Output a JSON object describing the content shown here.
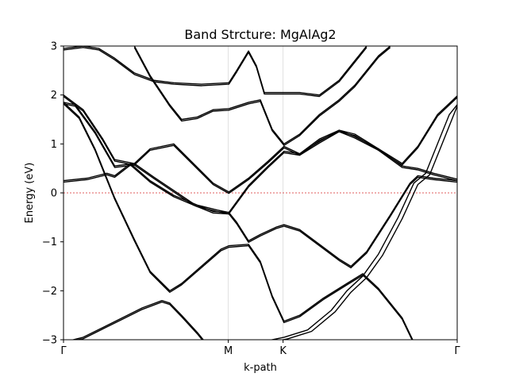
{
  "chart_data": {
    "type": "line",
    "title": "Band Strcture: MgAlAg2",
    "xlabel": "k-path",
    "ylabel": "Energy (eV)",
    "ylim": [
      -3,
      3
    ],
    "yticks": [
      -3,
      -2,
      -1,
      0,
      1,
      2,
      3
    ],
    "ytick_labels": [
      "−3",
      "−2",
      "−1",
      "0",
      "1",
      "2",
      "3"
    ],
    "xlim": [
      0,
      1
    ],
    "xticks": [
      {
        "pos": 0.0,
        "label": "Γ"
      },
      {
        "pos": 0.4186,
        "label": "M"
      },
      {
        "pos": 0.5577,
        "label": "K"
      },
      {
        "pos": 1.0,
        "label": "Γ"
      }
    ],
    "fermi_level": 0,
    "grid": "vertical at high-symmetry points",
    "colors": {
      "bands": "#000000",
      "fermi": "#d62728",
      "grid": "#d9d9d9"
    },
    "series": [
      {
        "points": [
          [
            0,
            -3.05
          ],
          [
            0.05,
            -2.95
          ],
          [
            0.1,
            -2.75
          ],
          [
            0.15,
            -2.55
          ],
          [
            0.2,
            -2.35
          ],
          [
            0.25,
            -2.2
          ],
          [
            0.27,
            -2.25
          ],
          [
            0.3,
            -2.5
          ],
          [
            0.34,
            -2.85
          ],
          [
            0.36,
            -3.05
          ]
        ]
      },
      {
        "points": [
          [
            0,
            -3.05
          ],
          [
            0.05,
            -2.98
          ],
          [
            0.1,
            -2.78
          ],
          [
            0.15,
            -2.58
          ],
          [
            0.2,
            -2.38
          ],
          [
            0.25,
            -2.23
          ],
          [
            0.27,
            -2.28
          ],
          [
            0.3,
            -2.53
          ],
          [
            0.34,
            -2.88
          ],
          [
            0.36,
            -3.08
          ]
        ]
      },
      {
        "points": [
          [
            0,
            1.85
          ],
          [
            0.04,
            1.55
          ],
          [
            0.08,
            0.9
          ],
          [
            0.13,
            -0.1
          ],
          [
            0.18,
            -0.95
          ],
          [
            0.22,
            -1.6
          ],
          [
            0.27,
            -2.0
          ],
          [
            0.3,
            -1.85
          ],
          [
            0.35,
            -1.5
          ],
          [
            0.4,
            -1.15
          ],
          [
            0.42,
            -1.08
          ],
          [
            0.47,
            -1.05
          ],
          [
            0.5,
            -1.4
          ],
          [
            0.53,
            -2.1
          ],
          [
            0.56,
            -2.62
          ],
          [
            0.6,
            -2.5
          ],
          [
            0.66,
            -2.15
          ],
          [
            0.72,
            -1.85
          ],
          [
            0.76,
            -1.65
          ],
          [
            0.8,
            -1.95
          ],
          [
            0.86,
            -2.55
          ],
          [
            0.89,
            -3.05
          ]
        ]
      },
      {
        "points": [
          [
            0,
            1.82
          ],
          [
            0.04,
            1.52
          ],
          [
            0.08,
            0.87
          ],
          [
            0.13,
            -0.13
          ],
          [
            0.18,
            -0.98
          ],
          [
            0.22,
            -1.63
          ],
          [
            0.27,
            -2.03
          ],
          [
            0.3,
            -1.88
          ],
          [
            0.35,
            -1.53
          ],
          [
            0.4,
            -1.18
          ],
          [
            0.42,
            -1.11
          ],
          [
            0.47,
            -1.08
          ],
          [
            0.5,
            -1.43
          ],
          [
            0.53,
            -2.13
          ],
          [
            0.56,
            -2.65
          ],
          [
            0.6,
            -2.53
          ],
          [
            0.66,
            -2.18
          ],
          [
            0.72,
            -1.88
          ],
          [
            0.76,
            -1.68
          ],
          [
            0.8,
            -1.98
          ],
          [
            0.86,
            -2.58
          ],
          [
            0.89,
            -3.08
          ]
        ]
      },
      {
        "points": [
          [
            0,
            0.25
          ],
          [
            0.06,
            0.3
          ],
          [
            0.11,
            0.4
          ],
          [
            0.13,
            0.35
          ],
          [
            0.17,
            0.6
          ],
          [
            0.22,
            0.25
          ],
          [
            0.28,
            -0.05
          ],
          [
            0.34,
            -0.25
          ],
          [
            0.39,
            -0.35
          ],
          [
            0.42,
            -0.4
          ],
          [
            0.44,
            -0.6
          ],
          [
            0.47,
            -0.98
          ],
          [
            0.5,
            -0.85
          ],
          [
            0.54,
            -0.7
          ],
          [
            0.56,
            -0.65
          ],
          [
            0.6,
            -0.75
          ],
          [
            0.65,
            -1.05
          ],
          [
            0.7,
            -1.35
          ],
          [
            0.73,
            -1.5
          ],
          [
            0.77,
            -1.2
          ],
          [
            0.83,
            -0.45
          ],
          [
            0.88,
            0.2
          ],
          [
            0.9,
            0.35
          ],
          [
            0.94,
            0.3
          ],
          [
            1,
            0.25
          ]
        ]
      },
      {
        "points": [
          [
            0,
            0.22
          ],
          [
            0.06,
            0.27
          ],
          [
            0.11,
            0.37
          ],
          [
            0.13,
            0.32
          ],
          [
            0.17,
            0.57
          ],
          [
            0.22,
            0.22
          ],
          [
            0.28,
            -0.08
          ],
          [
            0.34,
            -0.28
          ],
          [
            0.39,
            -0.38
          ],
          [
            0.42,
            -0.43
          ],
          [
            0.44,
            -0.63
          ],
          [
            0.47,
            -1.01
          ],
          [
            0.5,
            -0.88
          ],
          [
            0.54,
            -0.73
          ],
          [
            0.56,
            -0.68
          ],
          [
            0.6,
            -0.78
          ],
          [
            0.65,
            -1.08
          ],
          [
            0.7,
            -1.38
          ],
          [
            0.73,
            -1.53
          ],
          [
            0.77,
            -1.23
          ],
          [
            0.83,
            -0.48
          ],
          [
            0.88,
            0.17
          ],
          [
            0.9,
            0.32
          ],
          [
            0.94,
            0.27
          ],
          [
            1,
            0.22
          ]
        ]
      },
      {
        "points": [
          [
            0,
            2.0
          ],
          [
            0.05,
            1.7
          ],
          [
            0.1,
            1.1
          ],
          [
            0.13,
            0.68
          ],
          [
            0.18,
            0.6
          ],
          [
            0.23,
            0.32
          ],
          [
            0.28,
            0.05
          ],
          [
            0.33,
            -0.22
          ],
          [
            0.38,
            -0.38
          ],
          [
            0.42,
            -0.4
          ],
          [
            0.47,
            0.15
          ],
          [
            0.52,
            0.55
          ],
          [
            0.56,
            0.85
          ],
          [
            0.6,
            0.8
          ],
          [
            0.65,
            1.1
          ],
          [
            0.7,
            1.28
          ],
          [
            0.74,
            1.15
          ],
          [
            0.8,
            0.9
          ],
          [
            0.86,
            0.6
          ],
          [
            0.9,
            0.95
          ],
          [
            0.95,
            1.6
          ],
          [
            1,
            1.98
          ]
        ]
      },
      {
        "points": [
          [
            0,
            1.97
          ],
          [
            0.05,
            1.67
          ],
          [
            0.1,
            1.07
          ],
          [
            0.13,
            0.65
          ],
          [
            0.18,
            0.57
          ],
          [
            0.23,
            0.29
          ],
          [
            0.28,
            0.02
          ],
          [
            0.33,
            -0.25
          ],
          [
            0.38,
            -0.41
          ],
          [
            0.42,
            -0.43
          ],
          [
            0.47,
            0.12
          ],
          [
            0.52,
            0.52
          ],
          [
            0.56,
            0.82
          ],
          [
            0.6,
            0.77
          ],
          [
            0.65,
            1.07
          ],
          [
            0.7,
            1.25
          ],
          [
            0.74,
            1.12
          ],
          [
            0.8,
            0.87
          ],
          [
            0.86,
            0.57
          ],
          [
            0.9,
            0.92
          ],
          [
            0.95,
            1.57
          ],
          [
            1,
            1.95
          ]
        ]
      },
      {
        "points": [
          [
            0,
            1.85
          ],
          [
            0.03,
            1.8
          ],
          [
            0.08,
            1.25
          ],
          [
            0.13,
            0.55
          ],
          [
            0.18,
            0.6
          ],
          [
            0.22,
            0.9
          ],
          [
            0.28,
            1.0
          ],
          [
            0.33,
            0.6
          ],
          [
            0.38,
            0.2
          ],
          [
            0.42,
            0.02
          ],
          [
            0.47,
            0.3
          ],
          [
            0.52,
            0.65
          ],
          [
            0.56,
            0.95
          ],
          [
            0.6,
            0.8
          ],
          [
            0.65,
            1.05
          ],
          [
            0.7,
            1.28
          ],
          [
            0.74,
            1.2
          ],
          [
            0.8,
            0.9
          ],
          [
            0.86,
            0.55
          ],
          [
            0.9,
            0.5
          ],
          [
            0.94,
            0.4
          ],
          [
            1,
            0.28
          ]
        ]
      },
      {
        "points": [
          [
            0,
            1.82
          ],
          [
            0.03,
            1.77
          ],
          [
            0.08,
            1.22
          ],
          [
            0.13,
            0.52
          ],
          [
            0.18,
            0.57
          ],
          [
            0.22,
            0.87
          ],
          [
            0.28,
            0.97
          ],
          [
            0.33,
            0.57
          ],
          [
            0.38,
            0.17
          ],
          [
            0.42,
            -0.01
          ],
          [
            0.47,
            0.27
          ],
          [
            0.52,
            0.62
          ],
          [
            0.56,
            0.92
          ],
          [
            0.6,
            0.77
          ],
          [
            0.65,
            1.02
          ],
          [
            0.7,
            1.25
          ],
          [
            0.74,
            1.17
          ],
          [
            0.8,
            0.87
          ],
          [
            0.86,
            0.52
          ],
          [
            0.9,
            0.47
          ],
          [
            0.94,
            0.37
          ],
          [
            1,
            0.25
          ]
        ]
      },
      {
        "points": [
          [
            0,
            2.95
          ],
          [
            0.05,
            3.0
          ],
          [
            0.09,
            2.95
          ],
          [
            0.13,
            2.75
          ],
          [
            0.18,
            2.45
          ],
          [
            0.23,
            2.3
          ],
          [
            0.28,
            2.25
          ],
          [
            0.35,
            2.22
          ],
          [
            0.42,
            2.25
          ],
          [
            0.44,
            2.5
          ],
          [
            0.47,
            2.9
          ],
          [
            0.49,
            2.6
          ],
          [
            0.51,
            2.05
          ],
          [
            0.56,
            2.05
          ],
          [
            0.6,
            2.05
          ],
          [
            0.65,
            2.0
          ],
          [
            0.7,
            2.3
          ],
          [
            0.74,
            2.7
          ],
          [
            0.77,
            3.0
          ]
        ]
      },
      {
        "points": [
          [
            0,
            2.92
          ],
          [
            0.05,
            2.97
          ],
          [
            0.09,
            2.92
          ],
          [
            0.13,
            2.72
          ],
          [
            0.18,
            2.42
          ],
          [
            0.23,
            2.27
          ],
          [
            0.28,
            2.22
          ],
          [
            0.35,
            2.19
          ],
          [
            0.42,
            2.22
          ],
          [
            0.44,
            2.47
          ],
          [
            0.47,
            2.87
          ],
          [
            0.49,
            2.57
          ],
          [
            0.51,
            2.02
          ],
          [
            0.56,
            2.02
          ],
          [
            0.6,
            2.02
          ],
          [
            0.65,
            1.97
          ],
          [
            0.7,
            2.27
          ],
          [
            0.74,
            2.67
          ],
          [
            0.77,
            2.97
          ]
        ]
      },
      {
        "points": [
          [
            0.18,
            3.0
          ],
          [
            0.22,
            2.4
          ],
          [
            0.27,
            1.8
          ],
          [
            0.3,
            1.5
          ],
          [
            0.34,
            1.55
          ],
          [
            0.38,
            1.7
          ],
          [
            0.42,
            1.72
          ],
          [
            0.47,
            1.85
          ],
          [
            0.5,
            1.9
          ],
          [
            0.53,
            1.3
          ],
          [
            0.56,
            1.0
          ],
          [
            0.6,
            1.2
          ],
          [
            0.65,
            1.6
          ],
          [
            0.7,
            1.9
          ],
          [
            0.74,
            2.2
          ],
          [
            0.8,
            2.8
          ],
          [
            0.83,
            3.0
          ]
        ]
      },
      {
        "points": [
          [
            0.18,
            2.97
          ],
          [
            0.22,
            2.37
          ],
          [
            0.27,
            1.77
          ],
          [
            0.3,
            1.47
          ],
          [
            0.34,
            1.52
          ],
          [
            0.38,
            1.67
          ],
          [
            0.42,
            1.69
          ],
          [
            0.47,
            1.82
          ],
          [
            0.5,
            1.87
          ],
          [
            0.53,
            1.27
          ],
          [
            0.56,
            0.97
          ],
          [
            0.6,
            1.17
          ],
          [
            0.65,
            1.57
          ],
          [
            0.7,
            1.87
          ],
          [
            0.74,
            2.17
          ],
          [
            0.8,
            2.77
          ],
          [
            0.83,
            2.97
          ]
        ]
      },
      {
        "points": [
          [
            0.5,
            -3.05
          ],
          [
            0.56,
            -2.95
          ],
          [
            0.62,
            -2.8
          ],
          [
            0.68,
            -2.4
          ],
          [
            0.72,
            -2.0
          ],
          [
            0.76,
            -1.7
          ],
          [
            0.8,
            -1.25
          ],
          [
            0.85,
            -0.5
          ],
          [
            0.89,
            0.2
          ],
          [
            0.92,
            0.4
          ],
          [
            0.95,
            1.0
          ],
          [
            0.98,
            1.6
          ],
          [
            1,
            1.8
          ]
        ]
      },
      {
        "points": [
          [
            0.51,
            -3.08
          ],
          [
            0.57,
            -2.98
          ],
          [
            0.63,
            -2.83
          ],
          [
            0.69,
            -2.43
          ],
          [
            0.73,
            -2.03
          ],
          [
            0.77,
            -1.73
          ],
          [
            0.81,
            -1.28
          ],
          [
            0.86,
            -0.53
          ],
          [
            0.9,
            0.17
          ],
          [
            0.93,
            0.37
          ],
          [
            0.96,
            0.97
          ],
          [
            0.99,
            1.57
          ],
          [
            1,
            1.77
          ]
        ]
      }
    ]
  }
}
